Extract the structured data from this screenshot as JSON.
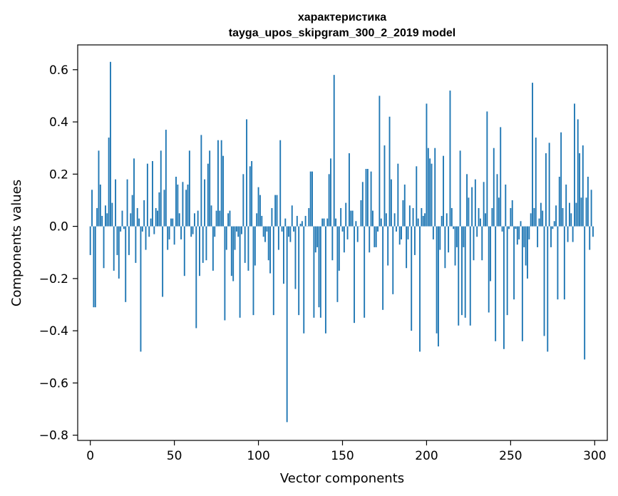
{
  "chart_data": {
    "type": "bar",
    "title": "характеристика",
    "subtitle": "tayga_upos_skipgram_300_2_2019 model",
    "xlabel": "Vector components",
    "ylabel": "Components values",
    "xlim": [
      -7.5,
      307.5
    ],
    "ylim": [
      -0.82,
      0.695
    ],
    "xticks": [
      0,
      50,
      100,
      150,
      200,
      250,
      300
    ],
    "yticks": [
      -0.8,
      -0.6,
      -0.4,
      -0.2,
      0.0,
      0.2,
      0.4,
      0.6
    ],
    "ytick_labels": [
      "−0.8",
      "−0.6",
      "−0.4",
      "−0.2",
      "0.0",
      "0.2",
      "0.4",
      "0.6"
    ],
    "grid": false,
    "bar_color": "#1f77b4",
    "x_start": 0,
    "values": [
      -0.11,
      0.14,
      -0.31,
      -0.31,
      0.07,
      0.29,
      0.16,
      0.04,
      -0.16,
      0.08,
      0.05,
      0.34,
      0.63,
      0.09,
      -0.17,
      0.18,
      -0.11,
      -0.2,
      -0.02,
      0.06,
      -0.01,
      -0.29,
      0.18,
      -0.11,
      0.05,
      0.12,
      0.26,
      -0.14,
      0.07,
      0.03,
      -0.48,
      -0.02,
      0.1,
      -0.09,
      0.24,
      -0.04,
      0.03,
      0.25,
      -0.03,
      0.07,
      0.06,
      0.13,
      0.29,
      -0.27,
      0.14,
      0.37,
      -0.09,
      -0.05,
      0.03,
      0.03,
      -0.07,
      0.19,
      0.16,
      0.05,
      -0.05,
      0.17,
      -0.19,
      0.14,
      0.16,
      0.29,
      -0.04,
      -0.03,
      0.05,
      -0.39,
      0.06,
      -0.19,
      0.35,
      -0.14,
      0.18,
      -0.13,
      0.24,
      0.29,
      0.08,
      -0.17,
      -0.04,
      0.06,
      0.33,
      0.06,
      0.33,
      0.27,
      -0.36,
      -0.09,
      0.05,
      0.06,
      -0.19,
      -0.21,
      -0.09,
      -0.02,
      -0.04,
      -0.35,
      -0.03,
      0.2,
      -0.14,
      0.41,
      -0.17,
      0.23,
      0.25,
      -0.34,
      -0.15,
      0.05,
      0.15,
      0.12,
      0.04,
      -0.04,
      -0.06,
      -0.02,
      -0.13,
      -0.18,
      0.07,
      -0.34,
      0.12,
      0.12,
      -0.09,
      0.33,
      -0.02,
      -0.22,
      0.03,
      -0.75,
      -0.04,
      -0.06,
      0.08,
      -0.02,
      -0.24,
      0.04,
      -0.34,
      0.01,
      0.02,
      -0.41,
      0.04,
      0.0,
      0.07,
      0.21,
      0.21,
      -0.35,
      -0.1,
      -0.08,
      -0.31,
      -0.35,
      0.03,
      0.03,
      -0.41,
      0.03,
      0.2,
      0.26,
      -0.13,
      0.58,
      0.03,
      -0.29,
      -0.17,
      0.07,
      -0.02,
      -0.1,
      0.09,
      -0.05,
      0.28,
      0.06,
      0.06,
      -0.37,
      0.02,
      -0.06,
      0.0,
      0.1,
      0.17,
      -0.35,
      0.22,
      0.22,
      -0.1,
      0.21,
      0.06,
      -0.08,
      -0.08,
      -0.02,
      0.5,
      0.03,
      -0.32,
      0.31,
      0.05,
      -0.15,
      0.42,
      0.18,
      -0.26,
      0.05,
      -0.02,
      0.24,
      -0.07,
      -0.05,
      0.1,
      0.16,
      -0.16,
      -0.05,
      0.08,
      -0.4,
      0.07,
      -0.11,
      0.23,
      0.03,
      -0.48,
      0.07,
      0.04,
      0.05,
      0.47,
      0.3,
      0.26,
      0.24,
      -0.05,
      0.3,
      -0.41,
      -0.46,
      -0.09,
      0.04,
      0.27,
      -0.16,
      0.05,
      -0.1,
      0.52,
      0.07,
      -0.01,
      -0.15,
      -0.08,
      -0.38,
      0.29,
      -0.34,
      -0.08,
      -0.35,
      0.2,
      0.11,
      -0.38,
      0.15,
      -0.13,
      0.18,
      -0.04,
      0.07,
      0.03,
      -0.13,
      0.17,
      0.05,
      0.44,
      -0.33,
      -0.21,
      0.07,
      0.3,
      -0.44,
      0.2,
      0.11,
      0.38,
      -0.02,
      -0.47,
      0.16,
      -0.34,
      -0.01,
      0.07,
      0.1,
      -0.28,
      -0.01,
      -0.07,
      -0.05,
      0.02,
      -0.44,
      -0.08,
      -0.15,
      -0.2,
      -0.05,
      0.05,
      0.55,
      0.07,
      0.34,
      -0.08,
      0.03,
      0.09,
      0.06,
      -0.42,
      0.28,
      -0.48,
      0.32,
      -0.08,
      -0.01,
      0.02,
      0.08,
      -0.28,
      0.19,
      0.36,
      0.07,
      -0.28,
      0.16,
      -0.06,
      0.09,
      0.05,
      -0.06,
      0.47,
      0.09,
      0.41,
      0.28,
      0.11,
      0.31,
      -0.51,
      0.11,
      0.19,
      -0.09,
      0.14,
      -0.04
    ]
  }
}
